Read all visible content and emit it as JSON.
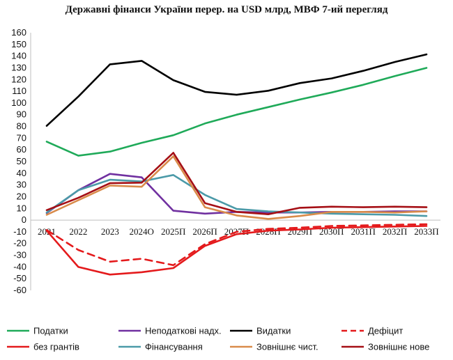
{
  "chart_data": {
    "type": "line",
    "title": "Державні фінанси України перер. на USD млрд, МВФ 7-ий перегляд",
    "categories": [
      "2021",
      "2022",
      "2023",
      "2024О",
      "2025П",
      "2026П",
      "2027П",
      "2028П",
      "2029П",
      "2030П",
      "2031П",
      "2032П",
      "2033П"
    ],
    "ylim": [
      -60,
      160
    ],
    "ytick_step": 10,
    "grid": false,
    "legend_position": "bottom",
    "series": [
      {
        "name": "Податки",
        "color": "#1faa59",
        "dash": false,
        "values": [
          67,
          55,
          58.5,
          66,
          72.5,
          82.5,
          90,
          96.5,
          103,
          109,
          115.5,
          123,
          130
        ]
      },
      {
        "name": "Неподаткові надх.",
        "color": "#7030a0",
        "dash": false,
        "values": [
          6,
          25.5,
          39.5,
          36.5,
          8,
          5.5,
          7,
          6.5,
          6.5,
          7,
          7,
          7.5,
          7.5
        ]
      },
      {
        "name": "Видатки",
        "color": "#000000",
        "dash": false,
        "values": [
          80.5,
          105.5,
          133,
          136,
          119.5,
          109.5,
          107,
          110.5,
          117,
          121,
          127.5,
          135,
          141.5
        ]
      },
      {
        "name": "Дефіцит",
        "color": "#e41a1c",
        "dash": true,
        "values": [
          -8.5,
          -25.5,
          -35.5,
          -33,
          -38.5,
          -20.5,
          -10,
          -7.5,
          -6.5,
          -5,
          -4.5,
          -4,
          -3.5
        ]
      },
      {
        "name": "без грантів",
        "color": "#e41a1c",
        "dash": false,
        "values": [
          -9,
          -40,
          -46.5,
          -44.5,
          -41,
          -22,
          -12,
          -9,
          -8,
          -6.5,
          -6,
          -5.5,
          -5
        ]
      },
      {
        "name": "Фінансування",
        "color": "#4b9aa8",
        "dash": false,
        "values": [
          6.5,
          25.5,
          34.5,
          33,
          38.5,
          21.5,
          9.5,
          7.5,
          6.5,
          5.5,
          5,
          4.5,
          3.5
        ]
      },
      {
        "name": "Зовнішнє чист.",
        "color": "#d98b4a",
        "dash": false,
        "values": [
          4.5,
          17,
          29.5,
          28.5,
          54.5,
          11,
          4,
          1,
          3.5,
          7,
          7,
          6.5,
          7.5
        ]
      },
      {
        "name": "Зовнішнє нове",
        "color": "#a50f15",
        "dash": false,
        "values": [
          8.5,
          19,
          31.5,
          32,
          57.5,
          14.5,
          7,
          5,
          10.5,
          11.5,
          11,
          11.5,
          11
        ]
      }
    ]
  }
}
